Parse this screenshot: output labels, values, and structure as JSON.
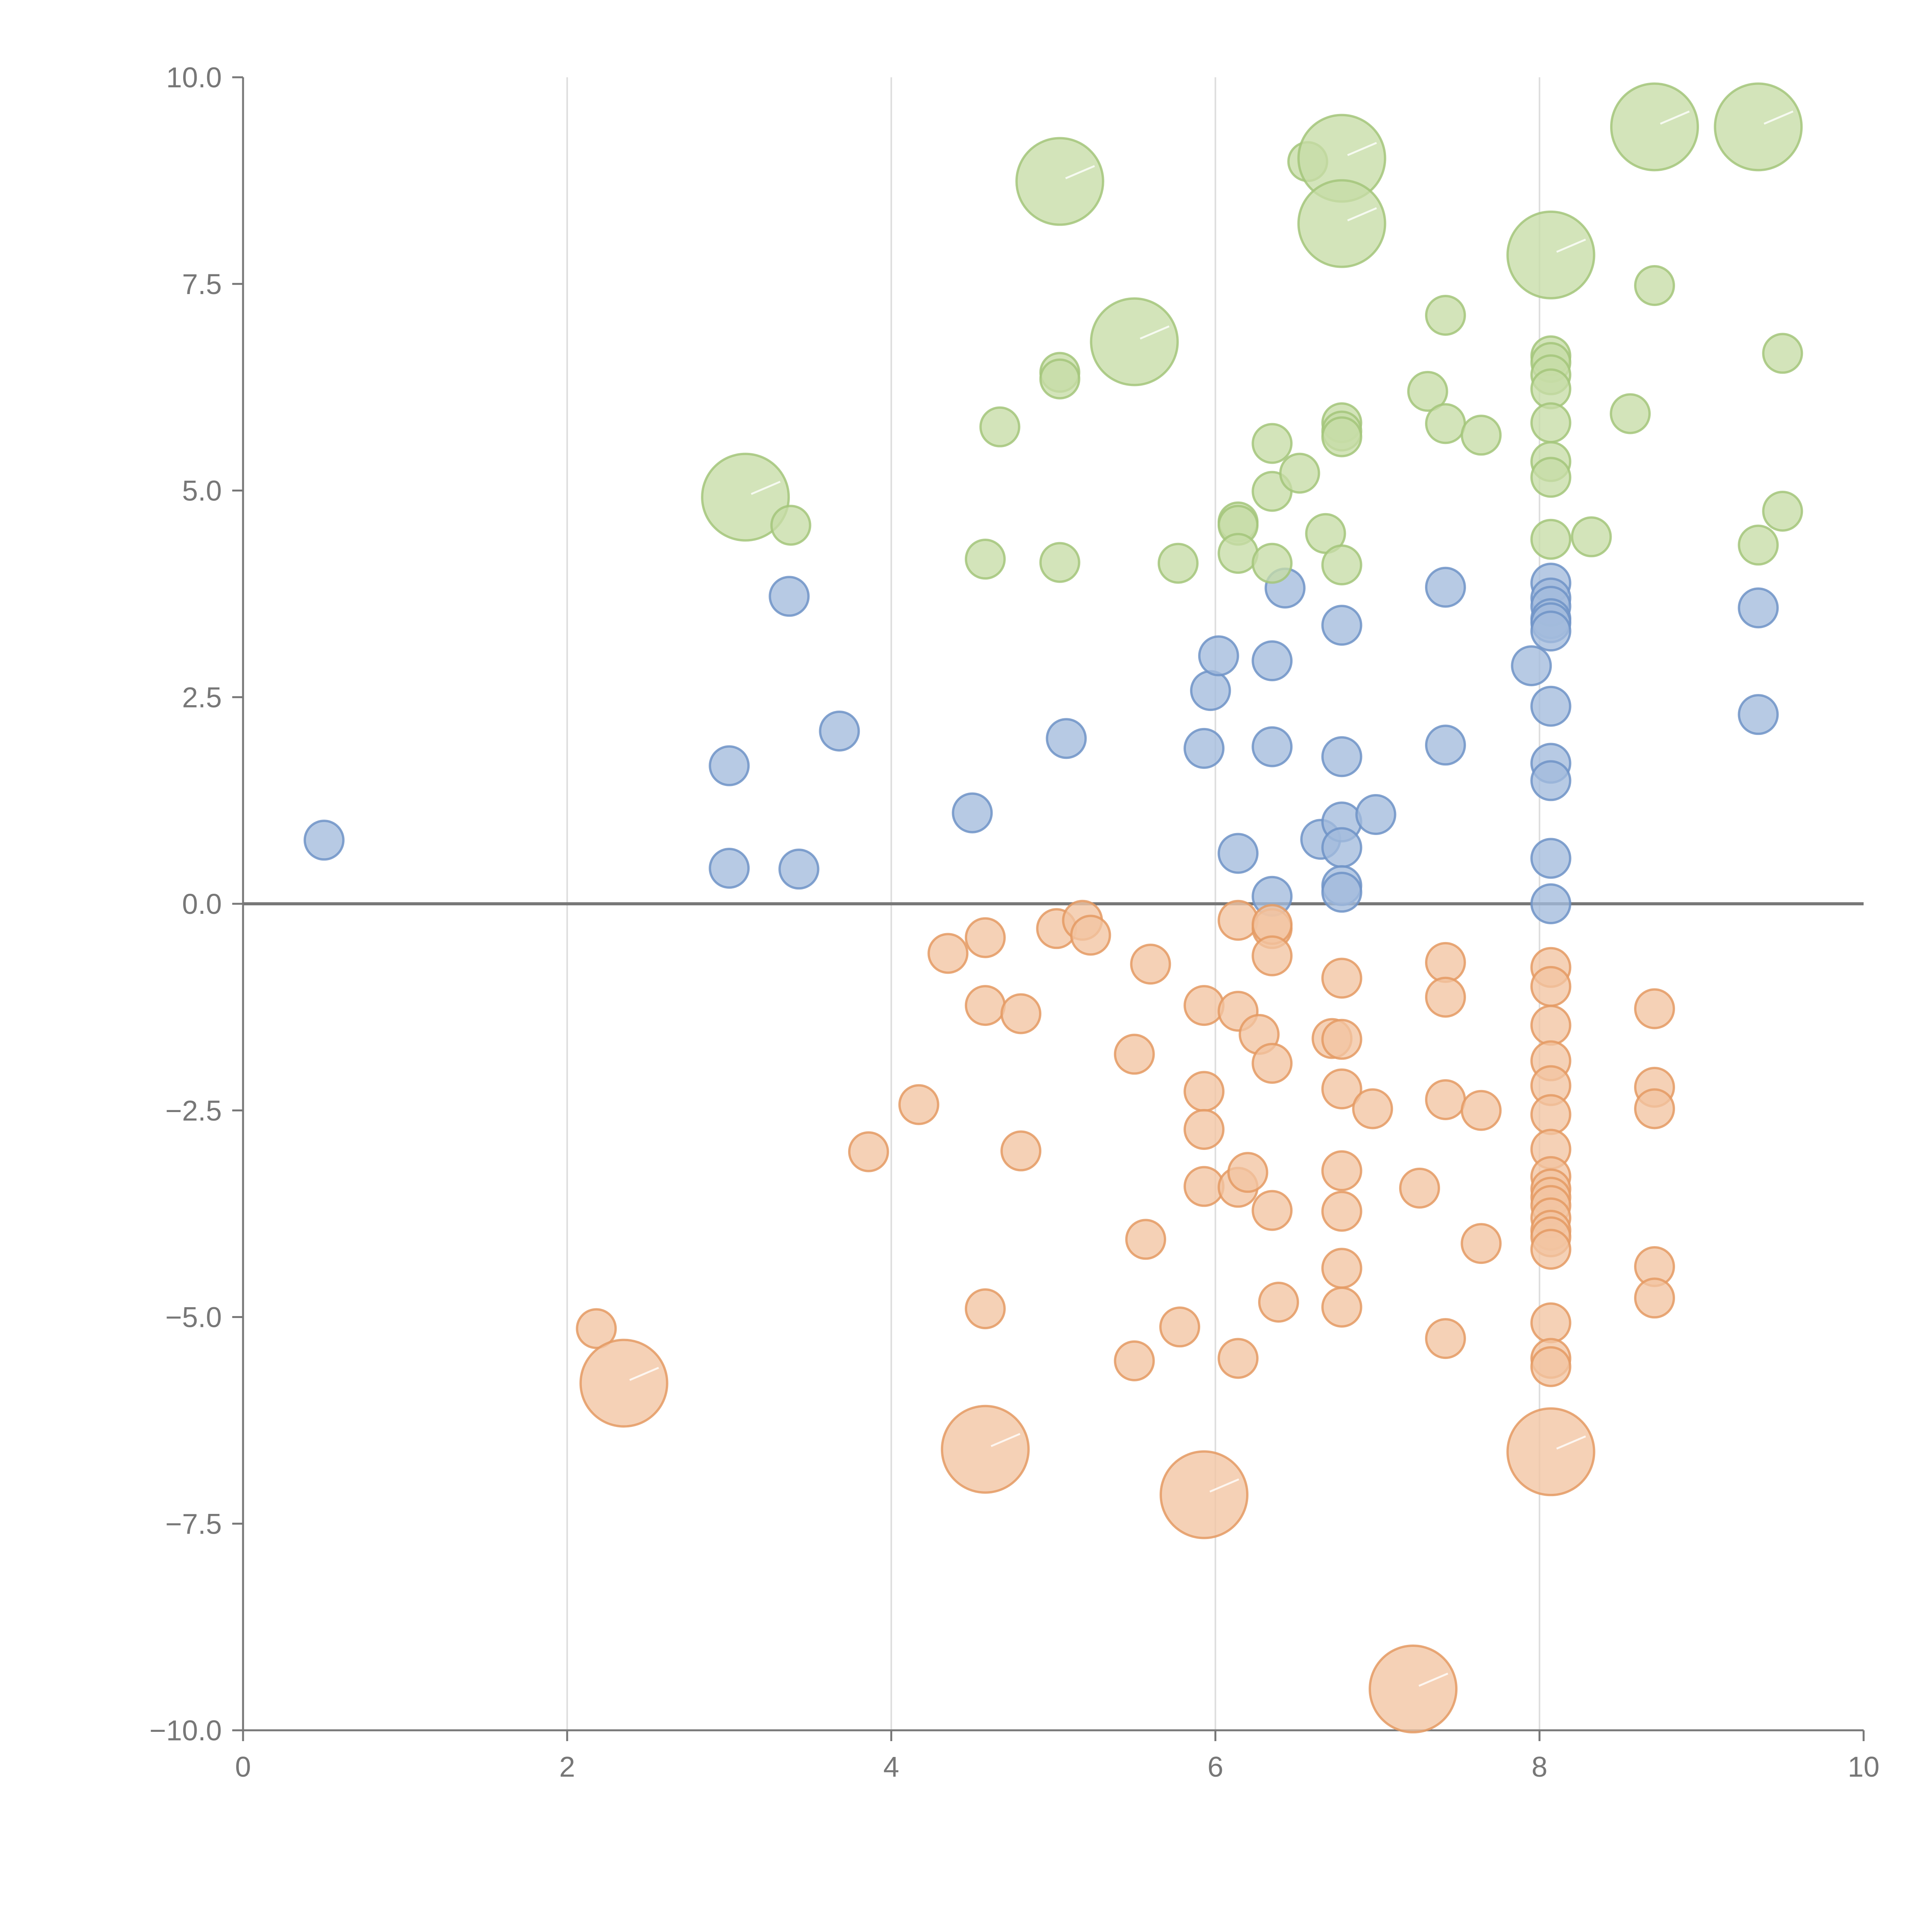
{
  "chart_data": {
    "type": "scatter",
    "title": "",
    "xlabel": "",
    "ylabel": "",
    "xlim": [
      0,
      10
    ],
    "ylim": [
      -10,
      10
    ],
    "x_ticks": [
      0,
      2,
      4,
      6,
      8,
      10
    ],
    "x_tick_labels": [
      "0",
      "2",
      "4",
      "6",
      "8",
      "10"
    ],
    "y_ticks": [
      10,
      7.5,
      5,
      2.5,
      0,
      -2.5,
      -5,
      -7.5,
      -10
    ],
    "y_tick_labels": [
      "10.0",
      "7.5",
      "5.0",
      "2.5",
      "0.0",
      "−2.5",
      "−5.0",
      "−7.5",
      "−10.0"
    ],
    "vertical_gridlines_at": [
      2,
      4,
      6,
      8
    ],
    "reference_line_y": 0,
    "colors": {
      "blue_fill": "#a3bbdd",
      "blue_stroke": "#6f93c7",
      "green_fill": "#c7dda7",
      "green_stroke": "#a3c57a",
      "orange_fill": "#f2c4a2",
      "orange_stroke": "#e49a63",
      "axis": "#777777",
      "grid": "#dddddd",
      "zero_line": "#777777"
    },
    "series": [
      {
        "name": "blue",
        "color": "blue",
        "points": [
          [
            0.5,
            0.77,
            1
          ],
          [
            3.0,
            1.67,
            1
          ],
          [
            3.0,
            0.43,
            1
          ],
          [
            3.37,
            3.72,
            1
          ],
          [
            3.43,
            0.42,
            1
          ],
          [
            3.68,
            2.09,
            1
          ],
          [
            4.5,
            1.1,
            1
          ],
          [
            5.08,
            2.0,
            1
          ],
          [
            5.93,
            1.88,
            1
          ],
          [
            5.97,
            2.58,
            1
          ],
          [
            6.02,
            3.0,
            1
          ],
          [
            6.14,
            0.61,
            1
          ],
          [
            6.35,
            2.94,
            1
          ],
          [
            6.35,
            1.9,
            1
          ],
          [
            6.35,
            0.09,
            1
          ],
          [
            6.43,
            3.82,
            1
          ],
          [
            6.65,
            0.78,
            1
          ],
          [
            6.78,
            3.37,
            1
          ],
          [
            6.78,
            1.78,
            1
          ],
          [
            6.78,
            0.99,
            1
          ],
          [
            6.78,
            0.68,
            1
          ],
          [
            6.78,
            0.22,
            1
          ],
          [
            6.78,
            0.14,
            1
          ],
          [
            6.99,
            1.08,
            1
          ],
          [
            7.42,
            3.83,
            1
          ],
          [
            7.42,
            1.92,
            1
          ],
          [
            7.95,
            2.88,
            1
          ],
          [
            8.07,
            3.88,
            1
          ],
          [
            8.07,
            3.7,
            1
          ],
          [
            8.07,
            3.6,
            1
          ],
          [
            8.07,
            3.45,
            1
          ],
          [
            8.07,
            3.4,
            1
          ],
          [
            8.07,
            3.3,
            1
          ],
          [
            8.07,
            2.39,
            1
          ],
          [
            8.07,
            1.7,
            1
          ],
          [
            8.07,
            1.49,
            1
          ],
          [
            8.07,
            0.55,
            1
          ],
          [
            8.07,
            0.0,
            1
          ],
          [
            9.35,
            3.58,
            1
          ],
          [
            9.35,
            2.29,
            1
          ]
        ]
      },
      {
        "name": "green",
        "color": "green",
        "points": [
          [
            3.1,
            4.92,
            3
          ],
          [
            3.38,
            4.58,
            1
          ],
          [
            4.58,
            4.17,
            1
          ],
          [
            4.67,
            5.77,
            1
          ],
          [
            5.04,
            8.74,
            3
          ],
          [
            5.04,
            6.43,
            1
          ],
          [
            5.04,
            6.35,
            1
          ],
          [
            5.04,
            4.13,
            1
          ],
          [
            5.5,
            6.8,
            3
          ],
          [
            5.77,
            4.12,
            1
          ],
          [
            6.14,
            4.62,
            1
          ],
          [
            6.14,
            4.58,
            1
          ],
          [
            6.14,
            4.24,
            1
          ],
          [
            6.35,
            5.57,
            1
          ],
          [
            6.35,
            4.99,
            1
          ],
          [
            6.35,
            4.12,
            1
          ],
          [
            6.52,
            5.21,
            1
          ],
          [
            6.57,
            8.98,
            1
          ],
          [
            6.68,
            4.48,
            1
          ],
          [
            6.78,
            9.02,
            3
          ],
          [
            6.78,
            8.23,
            3
          ],
          [
            6.78,
            5.82,
            1
          ],
          [
            6.78,
            5.72,
            1
          ],
          [
            6.78,
            5.65,
            1
          ],
          [
            6.78,
            4.1,
            1
          ],
          [
            7.31,
            6.2,
            1
          ],
          [
            7.42,
            7.12,
            1
          ],
          [
            7.42,
            5.81,
            1
          ],
          [
            7.64,
            5.67,
            1
          ],
          [
            8.07,
            7.85,
            3
          ],
          [
            8.07,
            6.63,
            1
          ],
          [
            8.07,
            6.55,
            1
          ],
          [
            8.07,
            6.4,
            1
          ],
          [
            8.07,
            6.23,
            1
          ],
          [
            8.07,
            5.82,
            1
          ],
          [
            8.07,
            5.35,
            1
          ],
          [
            8.07,
            5.16,
            1
          ],
          [
            8.07,
            4.41,
            1
          ],
          [
            8.32,
            4.44,
            1
          ],
          [
            8.56,
            5.93,
            1
          ],
          [
            8.71,
            9.4,
            3
          ],
          [
            8.71,
            7.48,
            1
          ],
          [
            9.35,
            9.4,
            3
          ],
          [
            9.35,
            4.34,
            1
          ],
          [
            9.5,
            6.66,
            1
          ],
          [
            9.5,
            4.75,
            1
          ]
        ]
      },
      {
        "name": "orange",
        "color": "orange",
        "points": [
          [
            2.18,
            -5.14,
            1
          ],
          [
            2.35,
            -5.8,
            3
          ],
          [
            3.86,
            -3.0,
            1
          ],
          [
            4.17,
            -2.43,
            1
          ],
          [
            4.35,
            -0.6,
            1
          ],
          [
            4.58,
            -0.41,
            1
          ],
          [
            4.58,
            -1.23,
            1
          ],
          [
            4.58,
            -4.9,
            1
          ],
          [
            4.58,
            -6.6,
            3
          ],
          [
            4.8,
            -1.33,
            1
          ],
          [
            4.8,
            -2.99,
            1
          ],
          [
            5.02,
            -0.3,
            1
          ],
          [
            5.18,
            -0.2,
            1
          ],
          [
            5.23,
            -0.38,
            1
          ],
          [
            5.5,
            -1.82,
            1
          ],
          [
            5.5,
            -5.53,
            1
          ],
          [
            5.57,
            -4.06,
            1
          ],
          [
            5.6,
            -0.73,
            1
          ],
          [
            5.78,
            -5.12,
            1
          ],
          [
            5.93,
            -1.23,
            1
          ],
          [
            5.93,
            -2.27,
            1
          ],
          [
            5.93,
            -2.73,
            1
          ],
          [
            5.93,
            -3.42,
            1
          ],
          [
            5.93,
            -7.15,
            3
          ],
          [
            6.14,
            -0.2,
            1
          ],
          [
            6.14,
            -1.3,
            1
          ],
          [
            6.14,
            -3.43,
            1
          ],
          [
            6.14,
            -5.5,
            1
          ],
          [
            6.2,
            -3.25,
            1
          ],
          [
            6.27,
            -1.58,
            1
          ],
          [
            6.35,
            -0.3,
            1
          ],
          [
            6.35,
            -0.25,
            1
          ],
          [
            6.35,
            -0.63,
            1
          ],
          [
            6.35,
            -1.93,
            1
          ],
          [
            6.35,
            -3.71,
            1
          ],
          [
            6.39,
            -4.82,
            1
          ],
          [
            6.72,
            -1.63,
            1
          ],
          [
            6.78,
            -1.64,
            1
          ],
          [
            6.78,
            -0.9,
            1
          ],
          [
            6.78,
            -2.24,
            1
          ],
          [
            6.78,
            -3.23,
            1
          ],
          [
            6.78,
            -3.72,
            1
          ],
          [
            6.78,
            -4.41,
            1
          ],
          [
            6.78,
            -4.88,
            1
          ],
          [
            6.97,
            -2.48,
            1
          ],
          [
            7.22,
            -9.5,
            3
          ],
          [
            7.26,
            -3.44,
            1
          ],
          [
            7.42,
            -0.71,
            1
          ],
          [
            7.42,
            -1.13,
            1
          ],
          [
            7.42,
            -2.37,
            1
          ],
          [
            7.42,
            -5.26,
            1
          ],
          [
            7.64,
            -2.5,
            1
          ],
          [
            7.64,
            -4.11,
            1
          ],
          [
            8.07,
            -6.63,
            3
          ],
          [
            8.07,
            -0.77,
            1
          ],
          [
            8.07,
            -1.0,
            1
          ],
          [
            8.07,
            -1.47,
            1
          ],
          [
            8.07,
            -1.9,
            1
          ],
          [
            8.07,
            -2.2,
            1
          ],
          [
            8.07,
            -2.55,
            1
          ],
          [
            8.07,
            -2.97,
            1
          ],
          [
            8.07,
            -3.3,
            1
          ],
          [
            8.07,
            -3.45,
            1
          ],
          [
            8.07,
            -3.55,
            1
          ],
          [
            8.07,
            -3.65,
            1
          ],
          [
            8.07,
            -3.8,
            1
          ],
          [
            8.07,
            -3.95,
            1
          ],
          [
            8.07,
            -4.03,
            1
          ],
          [
            8.07,
            -4.18,
            1
          ],
          [
            8.07,
            -5.07,
            1
          ],
          [
            8.07,
            -5.5,
            1
          ],
          [
            8.07,
            -5.6,
            1
          ],
          [
            8.71,
            -1.27,
            1
          ],
          [
            8.71,
            -2.22,
            1
          ],
          [
            8.71,
            -2.48,
            1
          ],
          [
            8.71,
            -4.39,
            1
          ],
          [
            8.71,
            -4.77,
            1
          ]
        ]
      }
    ]
  }
}
